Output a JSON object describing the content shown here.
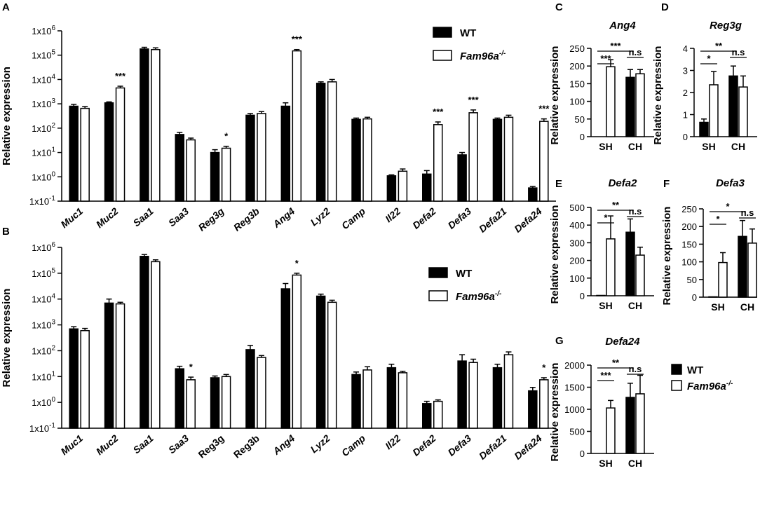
{
  "chart_data": [
    {
      "panel": "A",
      "type": "bar",
      "scale": "log",
      "ylabel": "Relative expression",
      "yticks": [
        "1x10-1",
        "1x100",
        "1x101",
        "1x102",
        "1x103",
        "1x104",
        "1x105",
        "1x106"
      ],
      "ylim_log10": [
        -1,
        6
      ],
      "categories": [
        "Muc1",
        "Muc2",
        "Saa1",
        "Saa3",
        "Reg3g",
        "Reg3b",
        "Ang4",
        "Lyz2",
        "Camp",
        "Il22",
        "Defa2",
        "Defa3",
        "Defa21",
        "Defa24"
      ],
      "category_italic": [
        true,
        true,
        true,
        true,
        true,
        true,
        true,
        true,
        true,
        true,
        true,
        true,
        true,
        true
      ],
      "series": [
        {
          "name": "WT",
          "fill": "#000000",
          "values": [
            800,
            1100,
            180000,
            55,
            10,
            340,
            800,
            7000,
            230,
            1.1,
            1.3,
            8,
            230,
            0.35
          ],
          "errors": [
            150,
            100,
            30000,
            12,
            3,
            60,
            300,
            1000,
            30,
            0.1,
            0.5,
            2,
            30,
            0.05
          ]
        },
        {
          "name": "Fam96a-/-",
          "fill": "#ffffff",
          "values": [
            650,
            4500,
            170000,
            33,
            15,
            400,
            150000,
            8000,
            240,
            1.7,
            140,
            430,
            280,
            190
          ],
          "errors": [
            120,
            800,
            30000,
            6,
            3,
            80,
            20000,
            2000,
            40,
            0.4,
            40,
            130,
            60,
            50
          ]
        }
      ],
      "significance": [
        "",
        "***",
        "",
        "",
        "*",
        "",
        "***",
        "",
        "",
        "",
        "***",
        "***",
        "",
        "***"
      ],
      "legend": {
        "items": [
          "WT",
          "Fam96a-/-"
        ]
      }
    },
    {
      "panel": "B",
      "type": "bar",
      "scale": "log",
      "ylabel": "Relative expression",
      "yticks": [
        "1x10-1",
        "1x100",
        "1x101",
        "1x102",
        "1x103",
        "1x104",
        "1x105",
        "1x106"
      ],
      "ylim_log10": [
        -1,
        6
      ],
      "categories": [
        "Muc1",
        "Muc2",
        "Saa1",
        "Saa3",
        "Reg3g",
        "Reg3b",
        "Ang4",
        "Lyz2",
        "Camp",
        "Il22",
        "Defa2",
        "Defa3",
        "Defa21",
        "Defa24"
      ],
      "category_italic": [
        true,
        true,
        true,
        true,
        false,
        false,
        true,
        true,
        true,
        true,
        true,
        true,
        true,
        true
      ],
      "series": [
        {
          "name": "WT",
          "fill": "#000000",
          "values": [
            700,
            7000,
            450000,
            20,
            9,
            110,
            25000,
            13000,
            12,
            22,
            0.9,
            40,
            22,
            2.8
          ],
          "errors": [
            150,
            3000,
            80000,
            5,
            1.5,
            50,
            15000,
            2500,
            3,
            8,
            0.2,
            30,
            8,
            1
          ]
        },
        {
          "name": "Fam96a-/-",
          "fill": "#ffffff",
          "values": [
            600,
            6500,
            280000,
            7.5,
            10,
            55,
            85000,
            7500,
            18,
            14,
            1.1,
            35,
            70,
            7.5
          ],
          "errors": [
            130,
            1000,
            50000,
            2,
            2,
            10,
            15000,
            1500,
            6,
            2,
            0.15,
            12,
            20,
            1.5
          ]
        }
      ],
      "significance": [
        "",
        "",
        "",
        "*",
        "",
        "",
        "*",
        "",
        "",
        "",
        "",
        "",
        "",
        "*"
      ],
      "legend": {
        "items": [
          "WT",
          "Fam96a-/-"
        ]
      }
    },
    {
      "panel": "C",
      "type": "bar",
      "title": "Ang4",
      "ylabel": "Relative expression",
      "ylim": [
        0,
        250
      ],
      "yticks": [
        0,
        50,
        100,
        150,
        200,
        250
      ],
      "categories": [
        "SH",
        "CH"
      ],
      "series": [
        {
          "name": "WT",
          "values": [
            0,
            168
          ],
          "errors": [
            0,
            22
          ]
        },
        {
          "name": "Fam96a-/-",
          "values": [
            198,
            178
          ],
          "errors": [
            20,
            12
          ]
        }
      ],
      "brackets": [
        {
          "label": "***",
          "from": 0,
          "to": 1,
          "level": 0
        },
        {
          "label": "***",
          "from": 0,
          "to": 2,
          "level": 1
        },
        {
          "label": "n.s",
          "from": 2,
          "to": 3,
          "level": 0
        }
      ]
    },
    {
      "panel": "D",
      "type": "bar",
      "title": "Reg3g",
      "ylabel": "Relative expression",
      "ylim": [
        0,
        4
      ],
      "yticks": [
        0,
        1,
        2,
        3,
        4
      ],
      "categories": [
        "SH",
        "CH"
      ],
      "series": [
        {
          "name": "WT",
          "values": [
            0.65,
            2.75
          ],
          "errors": [
            0.15,
            0.45
          ]
        },
        {
          "name": "Fam96a-/-",
          "values": [
            2.35,
            2.25
          ],
          "errors": [
            0.6,
            0.5
          ]
        }
      ],
      "brackets": [
        {
          "label": "*",
          "from": 0,
          "to": 1,
          "level": 0
        },
        {
          "label": "**",
          "from": 0,
          "to": 2,
          "level": 1
        },
        {
          "label": "n.s",
          "from": 2,
          "to": 3,
          "level": 0
        }
      ]
    },
    {
      "panel": "E",
      "type": "bar",
      "title": "Defa2",
      "ylabel": "Relative expression",
      "ylim": [
        0,
        500
      ],
      "yticks": [
        0,
        100,
        200,
        300,
        400,
        500
      ],
      "categories": [
        "SH",
        "CH"
      ],
      "series": [
        {
          "name": "WT",
          "values": [
            2,
            360
          ],
          "errors": [
            0,
            75
          ]
        },
        {
          "name": "Fam96a-/-",
          "values": [
            322,
            230
          ],
          "errors": [
            130,
            45
          ]
        }
      ],
      "brackets": [
        {
          "label": "*",
          "from": 0,
          "to": 1,
          "level": 0
        },
        {
          "label": "**",
          "from": 0,
          "to": 2,
          "level": 1
        },
        {
          "label": "n.s",
          "from": 2,
          "to": 3,
          "level": 0
        }
      ]
    },
    {
      "panel": "F",
      "type": "bar",
      "title": "Defa3",
      "ylabel": "Relative expression",
      "ylim": [
        0,
        250
      ],
      "yticks": [
        0,
        50,
        100,
        150,
        200,
        250
      ],
      "categories": [
        "SH",
        "CH"
      ],
      "series": [
        {
          "name": "WT",
          "values": [
            1,
            172
          ],
          "errors": [
            0,
            45
          ]
        },
        {
          "name": "Fam96a-/-",
          "values": [
            98,
            153
          ],
          "errors": [
            28,
            40
          ]
        }
      ],
      "brackets": [
        {
          "label": "*",
          "from": 0,
          "to": 1,
          "level": 0
        },
        {
          "label": "*",
          "from": 0,
          "to": 2,
          "level": 1
        },
        {
          "label": "n.s",
          "from": 2,
          "to": 3,
          "level": 0
        }
      ]
    },
    {
      "panel": "G",
      "type": "bar",
      "title": "Defa24",
      "ylabel": "Relative expression",
      "ylim": [
        0,
        2000
      ],
      "yticks": [
        0,
        500,
        1000,
        1500,
        2000
      ],
      "categories": [
        "SH",
        "CH"
      ],
      "series": [
        {
          "name": "WT",
          "values": [
            0,
            1270
          ],
          "errors": [
            0,
            320
          ]
        },
        {
          "name": "Fam96a-/-",
          "values": [
            1030,
            1350
          ],
          "errors": [
            170,
            420
          ]
        }
      ],
      "brackets": [
        {
          "label": "***",
          "from": 0,
          "to": 1,
          "level": 0
        },
        {
          "label": "**",
          "from": 0,
          "to": 2,
          "level": 1
        },
        {
          "label": "n.s",
          "from": 2,
          "to": 3,
          "level": 0
        }
      ],
      "legend": {
        "items": [
          "WT",
          "Fam96a-/-"
        ]
      }
    }
  ]
}
